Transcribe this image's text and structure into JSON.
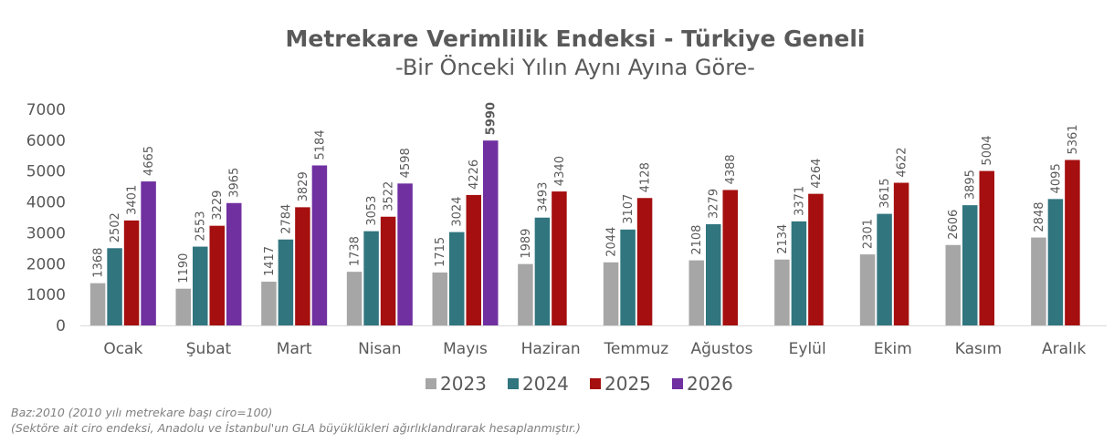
{
  "chart_data": {
    "type": "bar",
    "title": "Metrekare Verimlilik Endeksi - Türkiye Geneli",
    "subtitle": "-Bir Önceki Yılın Aynı Ayına Göre-",
    "categories": [
      "Ocak",
      "Şubat",
      "Mart",
      "Nisan",
      "Mayıs",
      "Haziran",
      "Temmuz",
      "Ağustos",
      "Eylül",
      "Ekim",
      "Kasım",
      "Aralık"
    ],
    "series": [
      {
        "name": "2023",
        "color": "#a6a6a6",
        "values": [
          1368,
          1190,
          1417,
          1738,
          1715,
          1989,
          2044,
          2108,
          2134,
          2301,
          2606,
          2848
        ]
      },
      {
        "name": "2024",
        "color": "#31757f",
        "values": [
          2502,
          2553,
          2784,
          3053,
          3024,
          3493,
          3107,
          3279,
          3371,
          3615,
          3895,
          4095
        ]
      },
      {
        "name": "2025",
        "color": "#a50f0f",
        "values": [
          3401,
          3229,
          3829,
          3522,
          4226,
          4340,
          4128,
          4388,
          4264,
          4622,
          5004,
          5361
        ]
      },
      {
        "name": "2026",
        "color": "#7030a0",
        "values": [
          4665,
          3965,
          5184,
          4598,
          5990,
          null,
          null,
          null,
          null,
          null,
          null,
          null
        ]
      }
    ],
    "yticks": [
      "0",
      "1000",
      "2000",
      "3000",
      "4000",
      "5000",
      "6000",
      "7000"
    ],
    "ylim": [
      0,
      7000
    ],
    "highlighted_label": {
      "series": "2026",
      "category": "Mayıs",
      "value": 5990
    },
    "legend_position": "bottom",
    "grid": false
  },
  "footnotes": [
    "Baz:2010 (2010 yılı metrekare başı ciro=100)",
    "(Sektöre ait ciro endeksi, Anadolu ve İstanbul'un GLA büyüklükleri ağırlıklandırarak hesaplanmıştır.)"
  ]
}
